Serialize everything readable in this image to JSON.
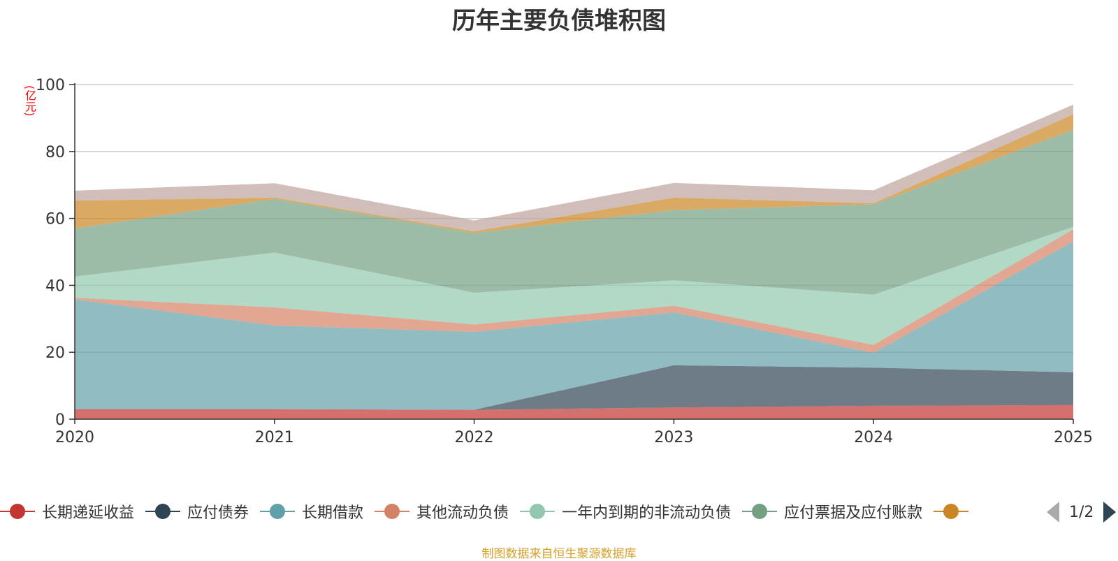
{
  "chart_data": {
    "type": "area",
    "stacked": true,
    "title": "历年主要负债堆积图",
    "ylabel": "(亿元)",
    "xlabel": "",
    "x": [
      "2020",
      "2021",
      "2022",
      "2023",
      "2024",
      "2025"
    ],
    "ylim": [
      0,
      100
    ],
    "yticks": [
      0,
      20,
      40,
      60,
      80,
      100
    ],
    "grid": true,
    "series": [
      {
        "name": "长期递延收益",
        "color": "#c23531",
        "values": [
          3.0,
          3.0,
          2.8,
          3.5,
          4.0,
          4.2
        ]
      },
      {
        "name": "应付债券",
        "color": "#2f4554",
        "values": [
          0,
          0,
          0,
          12.6,
          11.4,
          9.8
        ]
      },
      {
        "name": "长期借款",
        "color": "#61a0a8",
        "values": [
          32.8,
          25.0,
          23.3,
          15.8,
          4.4,
          39.1
        ]
      },
      {
        "name": "其他流动负债",
        "color": "#d48265",
        "values": [
          0.5,
          5.4,
          2.2,
          2.0,
          2.4,
          3.6
        ]
      },
      {
        "name": "一年内到期的非流动负债",
        "color": "#91c7ae",
        "values": [
          6.3,
          16.4,
          9.5,
          7.6,
          15.0,
          0.8
        ]
      },
      {
        "name": "应付票据及应付账款",
        "color": "#749f83",
        "values": [
          14.4,
          16.0,
          17.8,
          21.0,
          27.0,
          29.0
        ]
      },
      {
        "name": "",
        "color": "#ca8622",
        "values": [
          8.3,
          0.4,
          0.5,
          3.7,
          0.3,
          4.6
        ]
      },
      {
        "name": "",
        "color": "#bda29a",
        "values": [
          3.0,
          4.3,
          3.3,
          4.4,
          3.9,
          2.9
        ]
      }
    ]
  },
  "legend": {
    "page": "1/2"
  },
  "footnote": "制图数据来自恒生聚源数据库"
}
